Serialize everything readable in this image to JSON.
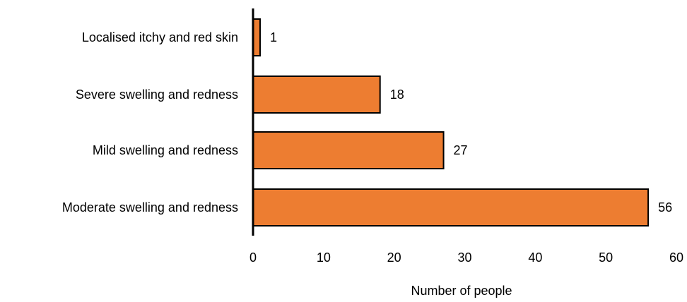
{
  "chart_data": {
    "type": "bar",
    "orientation": "horizontal",
    "categories": [
      "Localised itchy and red skin",
      "Severe swelling and redness",
      "Mild swelling and redness",
      "Moderate swelling and redness"
    ],
    "values": [
      1,
      18,
      27,
      56
    ],
    "data_labels": [
      "1",
      "18",
      "27",
      "56"
    ],
    "xlabel": "Number of people",
    "ylabel": "",
    "title": "",
    "xlim": [
      0,
      60
    ],
    "xticks": [
      "0",
      "10",
      "20",
      "30",
      "40",
      "50",
      "60"
    ],
    "grid": false,
    "legend": "none",
    "bar_color": "#ED7D31",
    "bar_outline_color": "#000000"
  }
}
